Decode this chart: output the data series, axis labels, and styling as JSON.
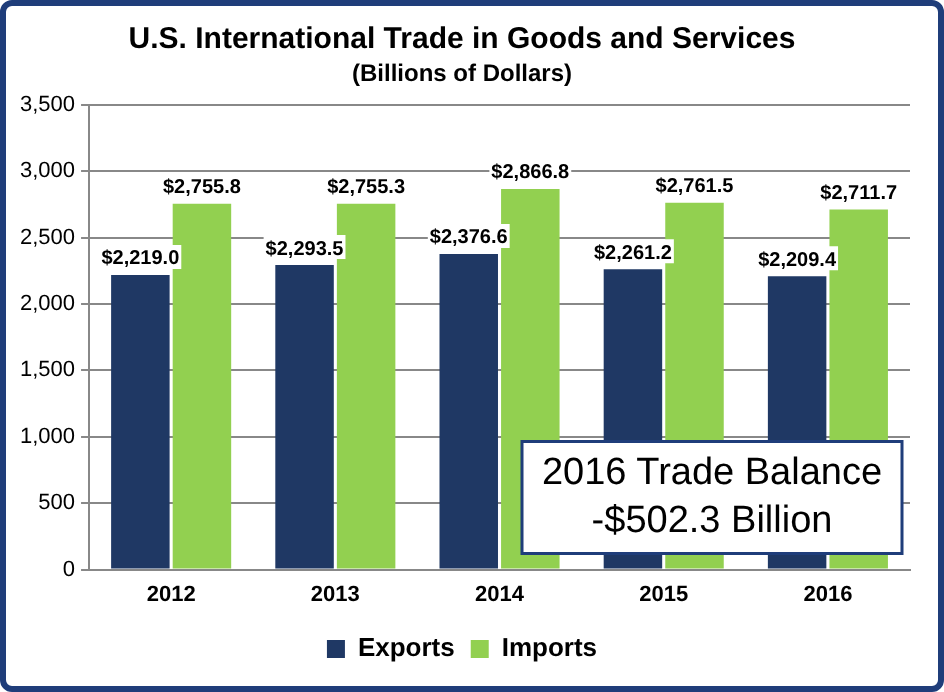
{
  "chart_data": {
    "type": "bar",
    "title": "U.S. International Trade in Goods and Services",
    "subtitle": "(Billions of Dollars)",
    "categories": [
      "2012",
      "2013",
      "2014",
      "2015",
      "2016"
    ],
    "series": [
      {
        "name": "Exports",
        "color": "#1f3864",
        "values": [
          2219.0,
          2293.5,
          2376.6,
          2261.2,
          2209.4
        ],
        "value_labels": [
          "$2,219.0",
          "$2,293.5",
          "$2,376.6",
          "$2,261.2",
          "$2,209.4"
        ]
      },
      {
        "name": "Imports",
        "color": "#92d050",
        "values": [
          2755.8,
          2755.3,
          2866.8,
          2761.5,
          2711.7
        ],
        "value_labels": [
          "$2,755.8",
          "$2,755.3",
          "$2,866.8",
          "$2,761.5",
          "$2,711.7"
        ]
      }
    ],
    "ylim": [
      0,
      3500
    ],
    "yticks": [
      0,
      500,
      {
        "value": 1000,
        "label": "1,000"
      },
      {
        "value": 1500,
        "label": "1,500"
      },
      {
        "value": 2000,
        "label": "2,000"
      },
      {
        "value": 2500,
        "label": "2,500"
      },
      {
        "value": 3000,
        "label": "3,000"
      },
      {
        "value": 3500,
        "label": "3,500"
      }
    ],
    "grid": "y",
    "legend": "bottom",
    "annotations": [
      "2016 Trade Balance\n-$502.3 Billion"
    ]
  }
}
